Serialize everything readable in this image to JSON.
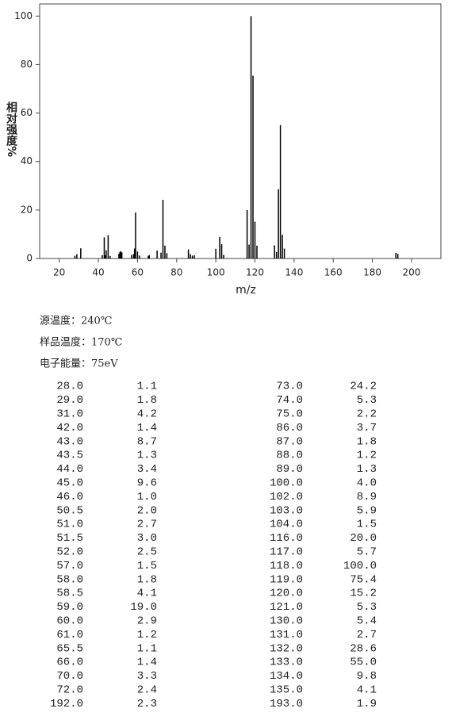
{
  "chart_data": {
    "type": "bar",
    "x_label": "m/z",
    "y_label": "相对强度%",
    "x": [
      28.0,
      29.0,
      31.0,
      42.0,
      43.0,
      43.5,
      44.0,
      45.0,
      46.0,
      50.5,
      51.0,
      51.5,
      52.0,
      57.0,
      58.0,
      58.5,
      59.0,
      60.0,
      61.0,
      65.5,
      66.0,
      70.0,
      72.0,
      73.0,
      74.0,
      75.0,
      86.0,
      87.0,
      88.0,
      89.0,
      100.0,
      102.0,
      103.0,
      104.0,
      116.0,
      117.0,
      118.0,
      119.0,
      120.0,
      121.0,
      130.0,
      131.0,
      132.0,
      133.0,
      134.0,
      135.0,
      192.0,
      193.0
    ],
    "values": [
      1.1,
      1.8,
      4.2,
      1.4,
      8.7,
      1.3,
      3.4,
      9.6,
      1.0,
      2.0,
      2.7,
      3.0,
      2.5,
      1.5,
      1.8,
      4.1,
      19.0,
      2.9,
      1.2,
      1.1,
      1.4,
      3.3,
      2.4,
      24.2,
      5.3,
      2.2,
      3.7,
      1.8,
      1.2,
      1.3,
      4.0,
      8.9,
      5.9,
      1.5,
      20.0,
      5.7,
      100.0,
      75.4,
      15.2,
      5.3,
      5.4,
      2.7,
      28.6,
      55.0,
      9.8,
      4.1,
      2.3,
      1.9
    ],
    "color": "#000000",
    "xlim": [
      10,
      215
    ],
    "ylim": [
      0,
      105
    ],
    "xticks": [
      20,
      40,
      60,
      80,
      100,
      120,
      140,
      160,
      180,
      200
    ],
    "yticks": [
      0,
      20,
      40,
      60,
      80,
      100
    ]
  },
  "conditions": [
    "源温度：240℃",
    "样品温度：170℃",
    "电子能量：75eV"
  ],
  "table": {
    "rows": [
      [
        "28.0",
        "1.1",
        "73.0",
        "24.2"
      ],
      [
        "29.0",
        "1.8",
        "74.0",
        "5.3"
      ],
      [
        "31.0",
        "4.2",
        "75.0",
        "2.2"
      ],
      [
        "42.0",
        "1.4",
        "86.0",
        "3.7"
      ],
      [
        "43.0",
        "8.7",
        "87.0",
        "1.8"
      ],
      [
        "43.5",
        "1.3",
        "88.0",
        "1.2"
      ],
      [
        "44.0",
        "3.4",
        "89.0",
        "1.3"
      ],
      [
        "45.0",
        "9.6",
        "100.0",
        "4.0"
      ],
      [
        "46.0",
        "1.0",
        "102.0",
        "8.9"
      ],
      [
        "50.5",
        "2.0",
        "103.0",
        "5.9"
      ],
      [
        "51.0",
        "2.7",
        "104.0",
        "1.5"
      ],
      [
        "51.5",
        "3.0",
        "116.0",
        "20.0"
      ],
      [
        "52.0",
        "2.5",
        "117.0",
        "5.7"
      ],
      [
        "57.0",
        "1.5",
        "118.0",
        "100.0"
      ],
      [
        "58.0",
        "1.8",
        "119.0",
        "75.4"
      ],
      [
        "58.5",
        "4.1",
        "120.0",
        "15.2"
      ],
      [
        "59.0",
        "19.0",
        "121.0",
        "5.3"
      ],
      [
        "60.0",
        "2.9",
        "130.0",
        "5.4"
      ],
      [
        "61.0",
        "1.2",
        "131.0",
        "2.7"
      ],
      [
        "65.5",
        "1.1",
        "132.0",
        "28.6"
      ],
      [
        "66.0",
        "1.4",
        "133.0",
        "55.0"
      ],
      [
        "70.0",
        "3.3",
        "134.0",
        "9.8"
      ],
      [
        "72.0",
        "2.4",
        "135.0",
        "4.1"
      ],
      [
        "192.0",
        "2.3",
        "193.0",
        "1.9"
      ]
    ]
  }
}
